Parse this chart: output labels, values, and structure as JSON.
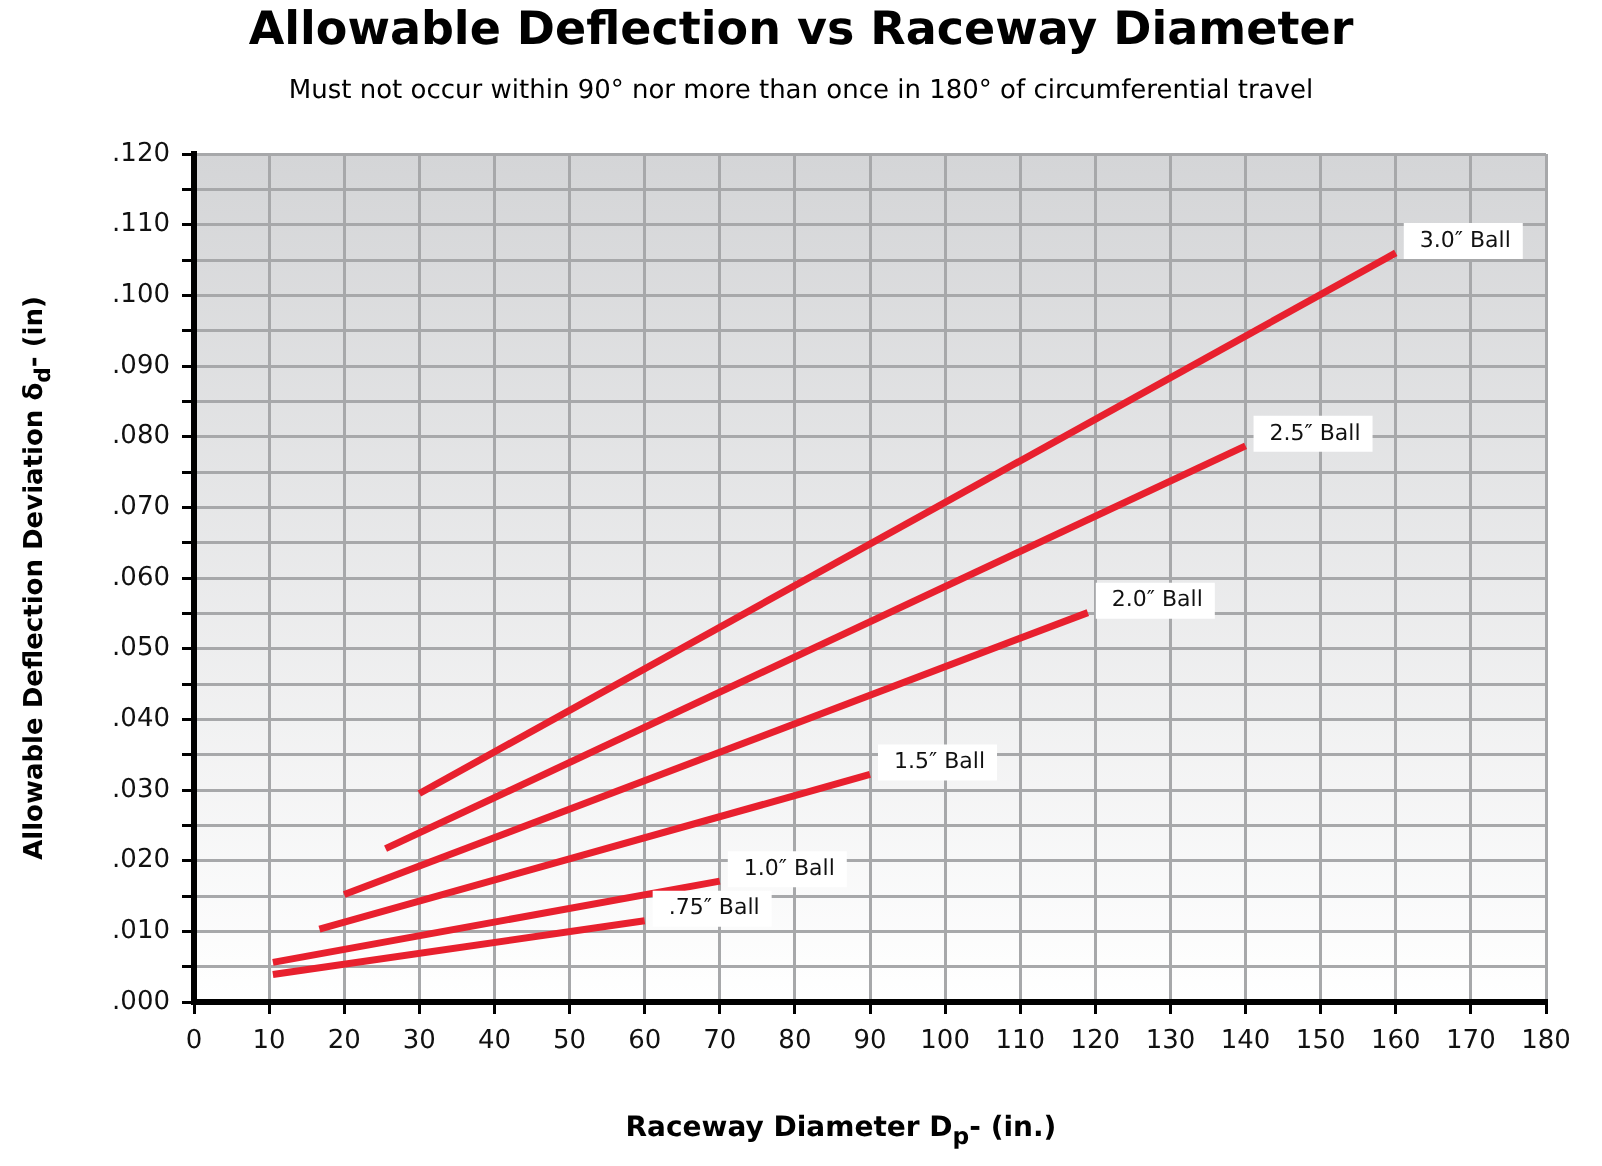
{
  "chart_data": {
    "type": "line",
    "title": "Allowable Deflection vs Raceway Diameter",
    "subtitle": "Must not occur within 90° nor more than once in 180° of circumferential travel",
    "xlabel": "Raceway Diameter D$_{p}$- (in.)",
    "ylabel": "Allowable Deflection Deviation δ$_{d}$- (in)",
    "xlim": [
      0,
      180
    ],
    "xticks": [
      0,
      10,
      20,
      30,
      40,
      50,
      60,
      70,
      80,
      90,
      100,
      110,
      120,
      130,
      140,
      150,
      160,
      170,
      180
    ],
    "ylim": [
      0,
      0.12
    ],
    "yticks": [
      {
        "value": 0,
        "label": ".000"
      },
      {
        "value": 0.005,
        "label": null
      },
      {
        "value": 0.01,
        "label": ".010"
      },
      {
        "value": 0.015,
        "label": null
      },
      {
        "value": 0.02,
        "label": ".020"
      },
      {
        "value": 0.025,
        "label": null
      },
      {
        "value": 0.03,
        "label": ".030"
      },
      {
        "value": 0.035,
        "label": null
      },
      {
        "value": 0.04,
        "label": ".040"
      },
      {
        "value": 0.045,
        "label": null
      },
      {
        "value": 0.05,
        "label": ".050"
      },
      {
        "value": 0.055,
        "label": null
      },
      {
        "value": 0.06,
        "label": ".060"
      },
      {
        "value": 0.065,
        "label": null
      },
      {
        "value": 0.07,
        "label": ".070"
      },
      {
        "value": 0.075,
        "label": null
      },
      {
        "value": 0.08,
        "label": ".080"
      },
      {
        "value": 0.085,
        "label": null
      },
      {
        "value": 0.09,
        "label": ".090"
      },
      {
        "value": 0.095,
        "label": null
      },
      {
        "value": 0.1,
        "label": ".100"
      },
      {
        "value": 0.105,
        "label": null
      },
      {
        "value": 0.11,
        "label": ".110"
      },
      {
        "value": 0.115,
        "label": null
      },
      {
        "value": 0.12,
        "label": ".120"
      }
    ],
    "grid": true,
    "legend": false,
    "marker": "none",
    "line_style": "solid",
    "series": [
      {
        "name": "3.0″ Ball",
        "color": "#e8202e",
        "x": [
          30,
          160
        ],
        "values": [
          0.0295,
          0.106
        ]
      },
      {
        "name": "2.5″ Ball",
        "color": "#e8202e",
        "x": [
          25.5,
          140
        ],
        "values": [
          0.0217,
          0.0787
        ]
      },
      {
        "name": "2.0″ Ball",
        "color": "#e8202e",
        "x": [
          20,
          119
        ],
        "values": [
          0.0152,
          0.0551
        ]
      },
      {
        "name": "1.5″ Ball",
        "color": "#e8202e",
        "x": [
          16.7,
          90
        ],
        "values": [
          0.0103,
          0.0322
        ]
      },
      {
        "name": "1.0″ Ball",
        "color": "#e8202e",
        "x": [
          10.5,
          70
        ],
        "values": [
          0.0056,
          0.0171
        ]
      },
      {
        "name": ".75″ Ball",
        "color": "#e8202e",
        "x": [
          10.5,
          60
        ],
        "values": [
          0.0039,
          0.0115
        ]
      }
    ]
  }
}
